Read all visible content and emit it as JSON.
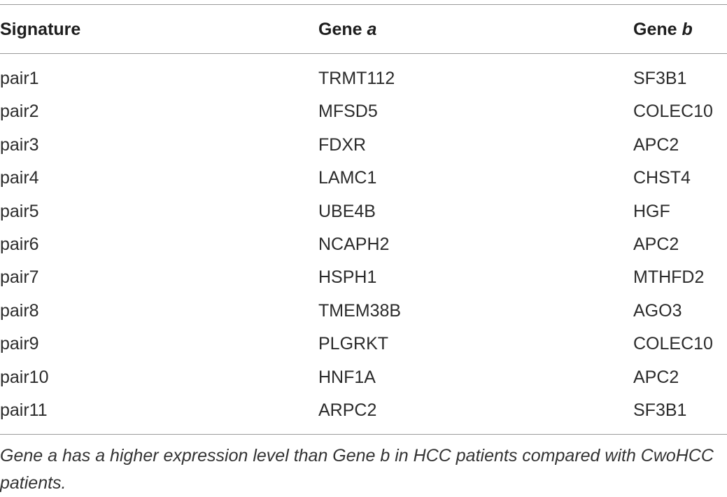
{
  "table": {
    "header": [
      [
        "Signature"
      ],
      [
        "Gene",
        "a"
      ],
      [
        "Gene",
        "b"
      ]
    ],
    "rows": [
      [
        "pair1",
        "TRMT112",
        "SF3B1"
      ],
      [
        "pair2",
        "MFSD5",
        "COLEC10"
      ],
      [
        "pair3",
        "FDXR",
        "APC2"
      ],
      [
        "pair4",
        "LAMC1",
        "CHST4"
      ],
      [
        "pair5",
        "UBE4B",
        "HGF"
      ],
      [
        "pair6",
        "NCAPH2",
        "APC2"
      ],
      [
        "pair7",
        "HSPH1",
        "MTHFD2"
      ],
      [
        "pair8",
        "TMEM38B",
        "AGO3"
      ],
      [
        "pair9",
        "PLGRKT",
        "COLEC10"
      ],
      [
        "pair10",
        "HNF1A",
        "APC2"
      ],
      [
        "pair11",
        "ARPC2",
        "SF3B1"
      ]
    ],
    "footnote": "Gene a has a higher expression level than Gene b in HCC patients compared with CwoHCC patients."
  }
}
